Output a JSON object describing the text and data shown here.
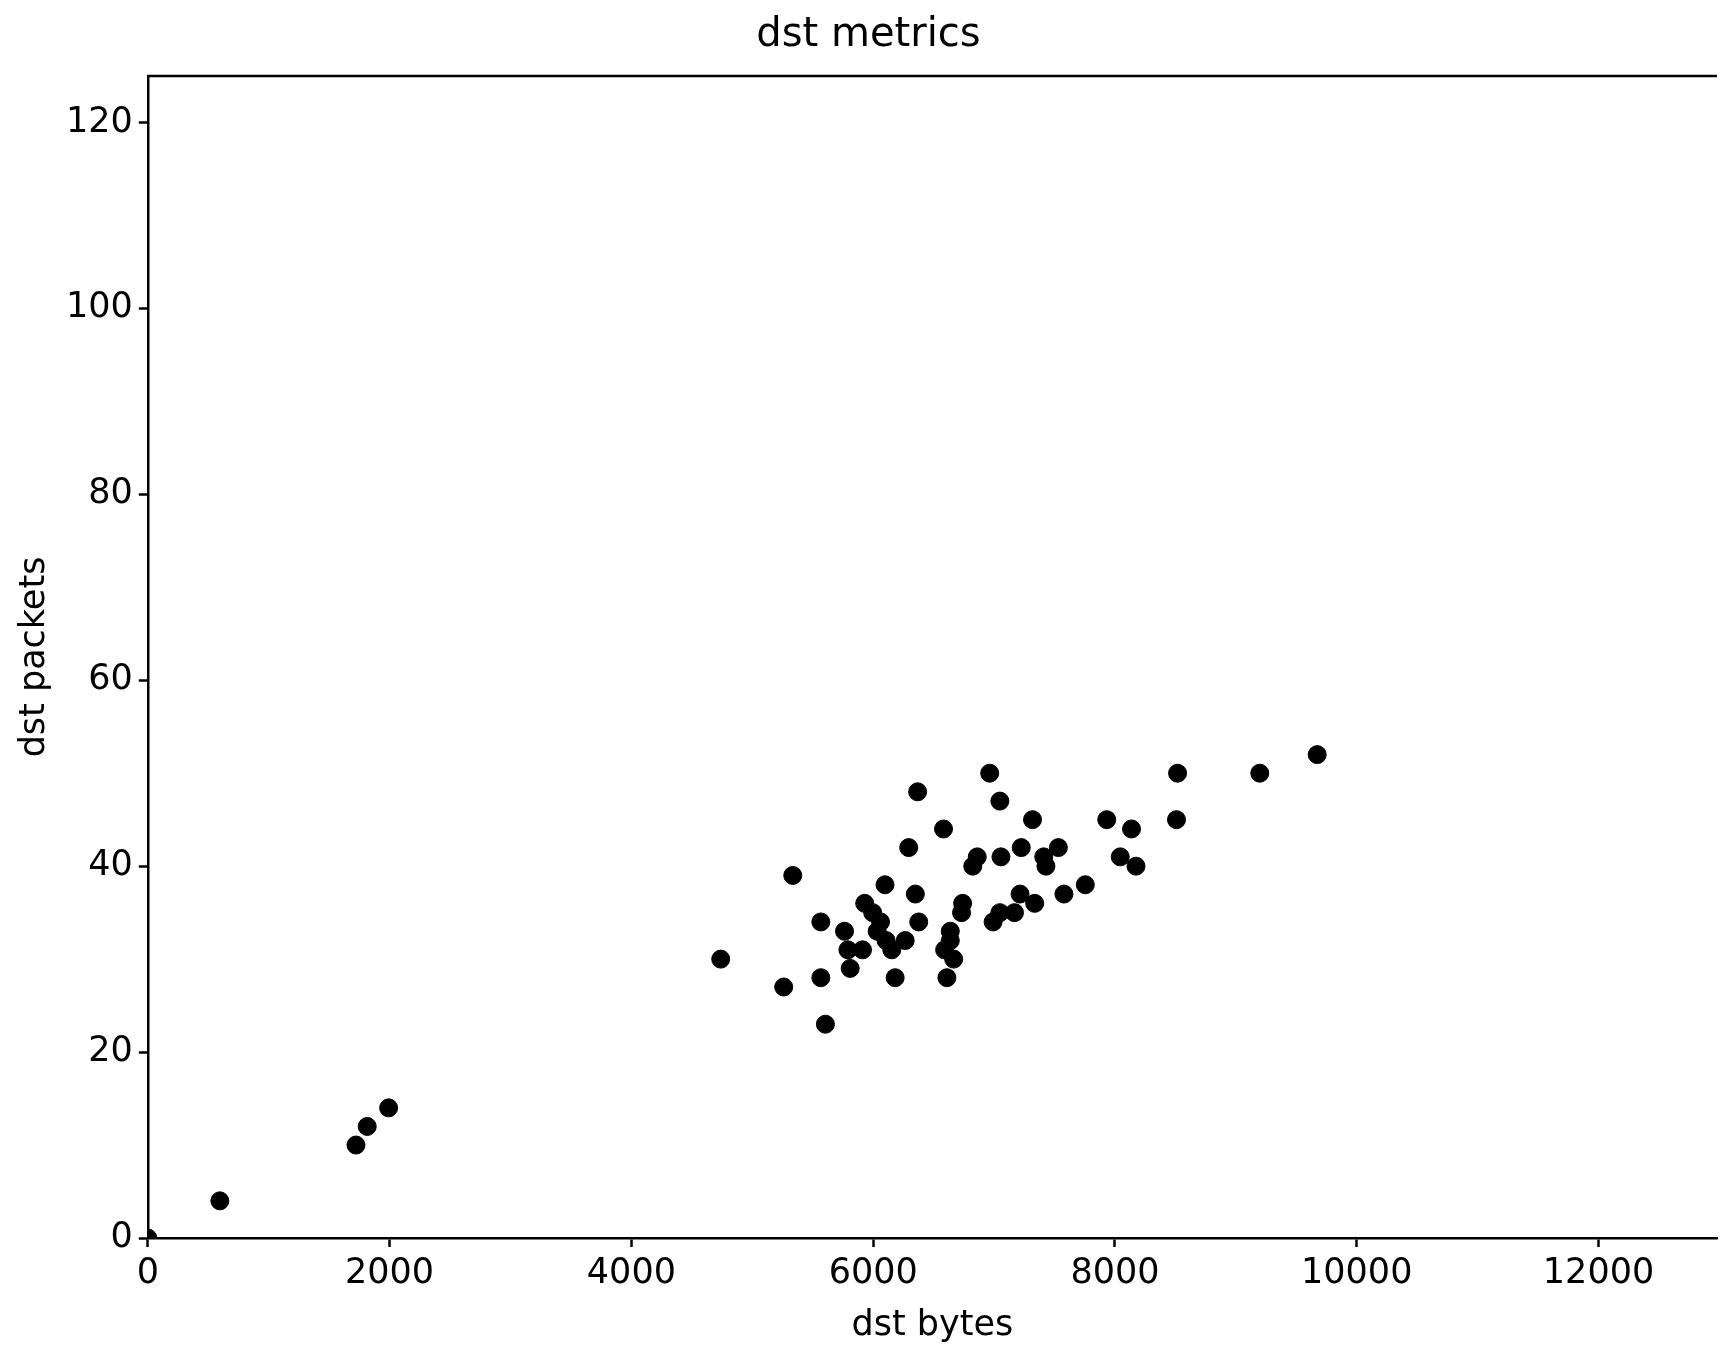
{
  "chart_data": {
    "type": "scatter",
    "title": "dst metrics",
    "xlabel": "dst bytes",
    "ylabel": "dst packets",
    "x": [
      0,
      596,
      1722,
      1815,
      1992,
      4739,
      5260,
      5335,
      5567,
      5567,
      5605,
      5763,
      5791,
      5810,
      5912,
      5930,
      5996,
      6033,
      6061,
      6098,
      6107,
      6154,
      6182,
      6265,
      6294,
      6349,
      6368,
      6377,
      6582,
      6591,
      6610,
      6638,
      6638,
      6666,
      6731,
      6740,
      6824,
      6861,
      6964,
      6992,
      7048,
      7057,
      7048,
      7169,
      7215,
      7225,
      7318,
      7336,
      7411,
      7429,
      7532,
      7578,
      7755,
      7932,
      8044,
      8137,
      8174,
      8509,
      8518,
      9198,
      9673
    ],
    "values": [
      0,
      4,
      10,
      12,
      14,
      30,
      27,
      39,
      34,
      28,
      23,
      33,
      31,
      29,
      31,
      36,
      35,
      33,
      34,
      38,
      32,
      31,
      28,
      32,
      42,
      37,
      48,
      34,
      44,
      31,
      28,
      33,
      32,
      30,
      35,
      36,
      40,
      41,
      50,
      34,
      47,
      41,
      35,
      35,
      37,
      42,
      45,
      36,
      41,
      40,
      42,
      37,
      38,
      45,
      41,
      44,
      40,
      45,
      50,
      50,
      52
    ],
    "color": "#000000",
    "marker": "circle",
    "xlim": [
      0,
      12980
    ],
    "xticks": [
      0,
      2000,
      4000,
      6000,
      8000,
      10000,
      12000
    ],
    "ylim": [
      0,
      125
    ],
    "yticks": [
      0,
      20,
      40,
      60,
      80,
      100,
      120
    ],
    "grid": false,
    "legend": false
  }
}
